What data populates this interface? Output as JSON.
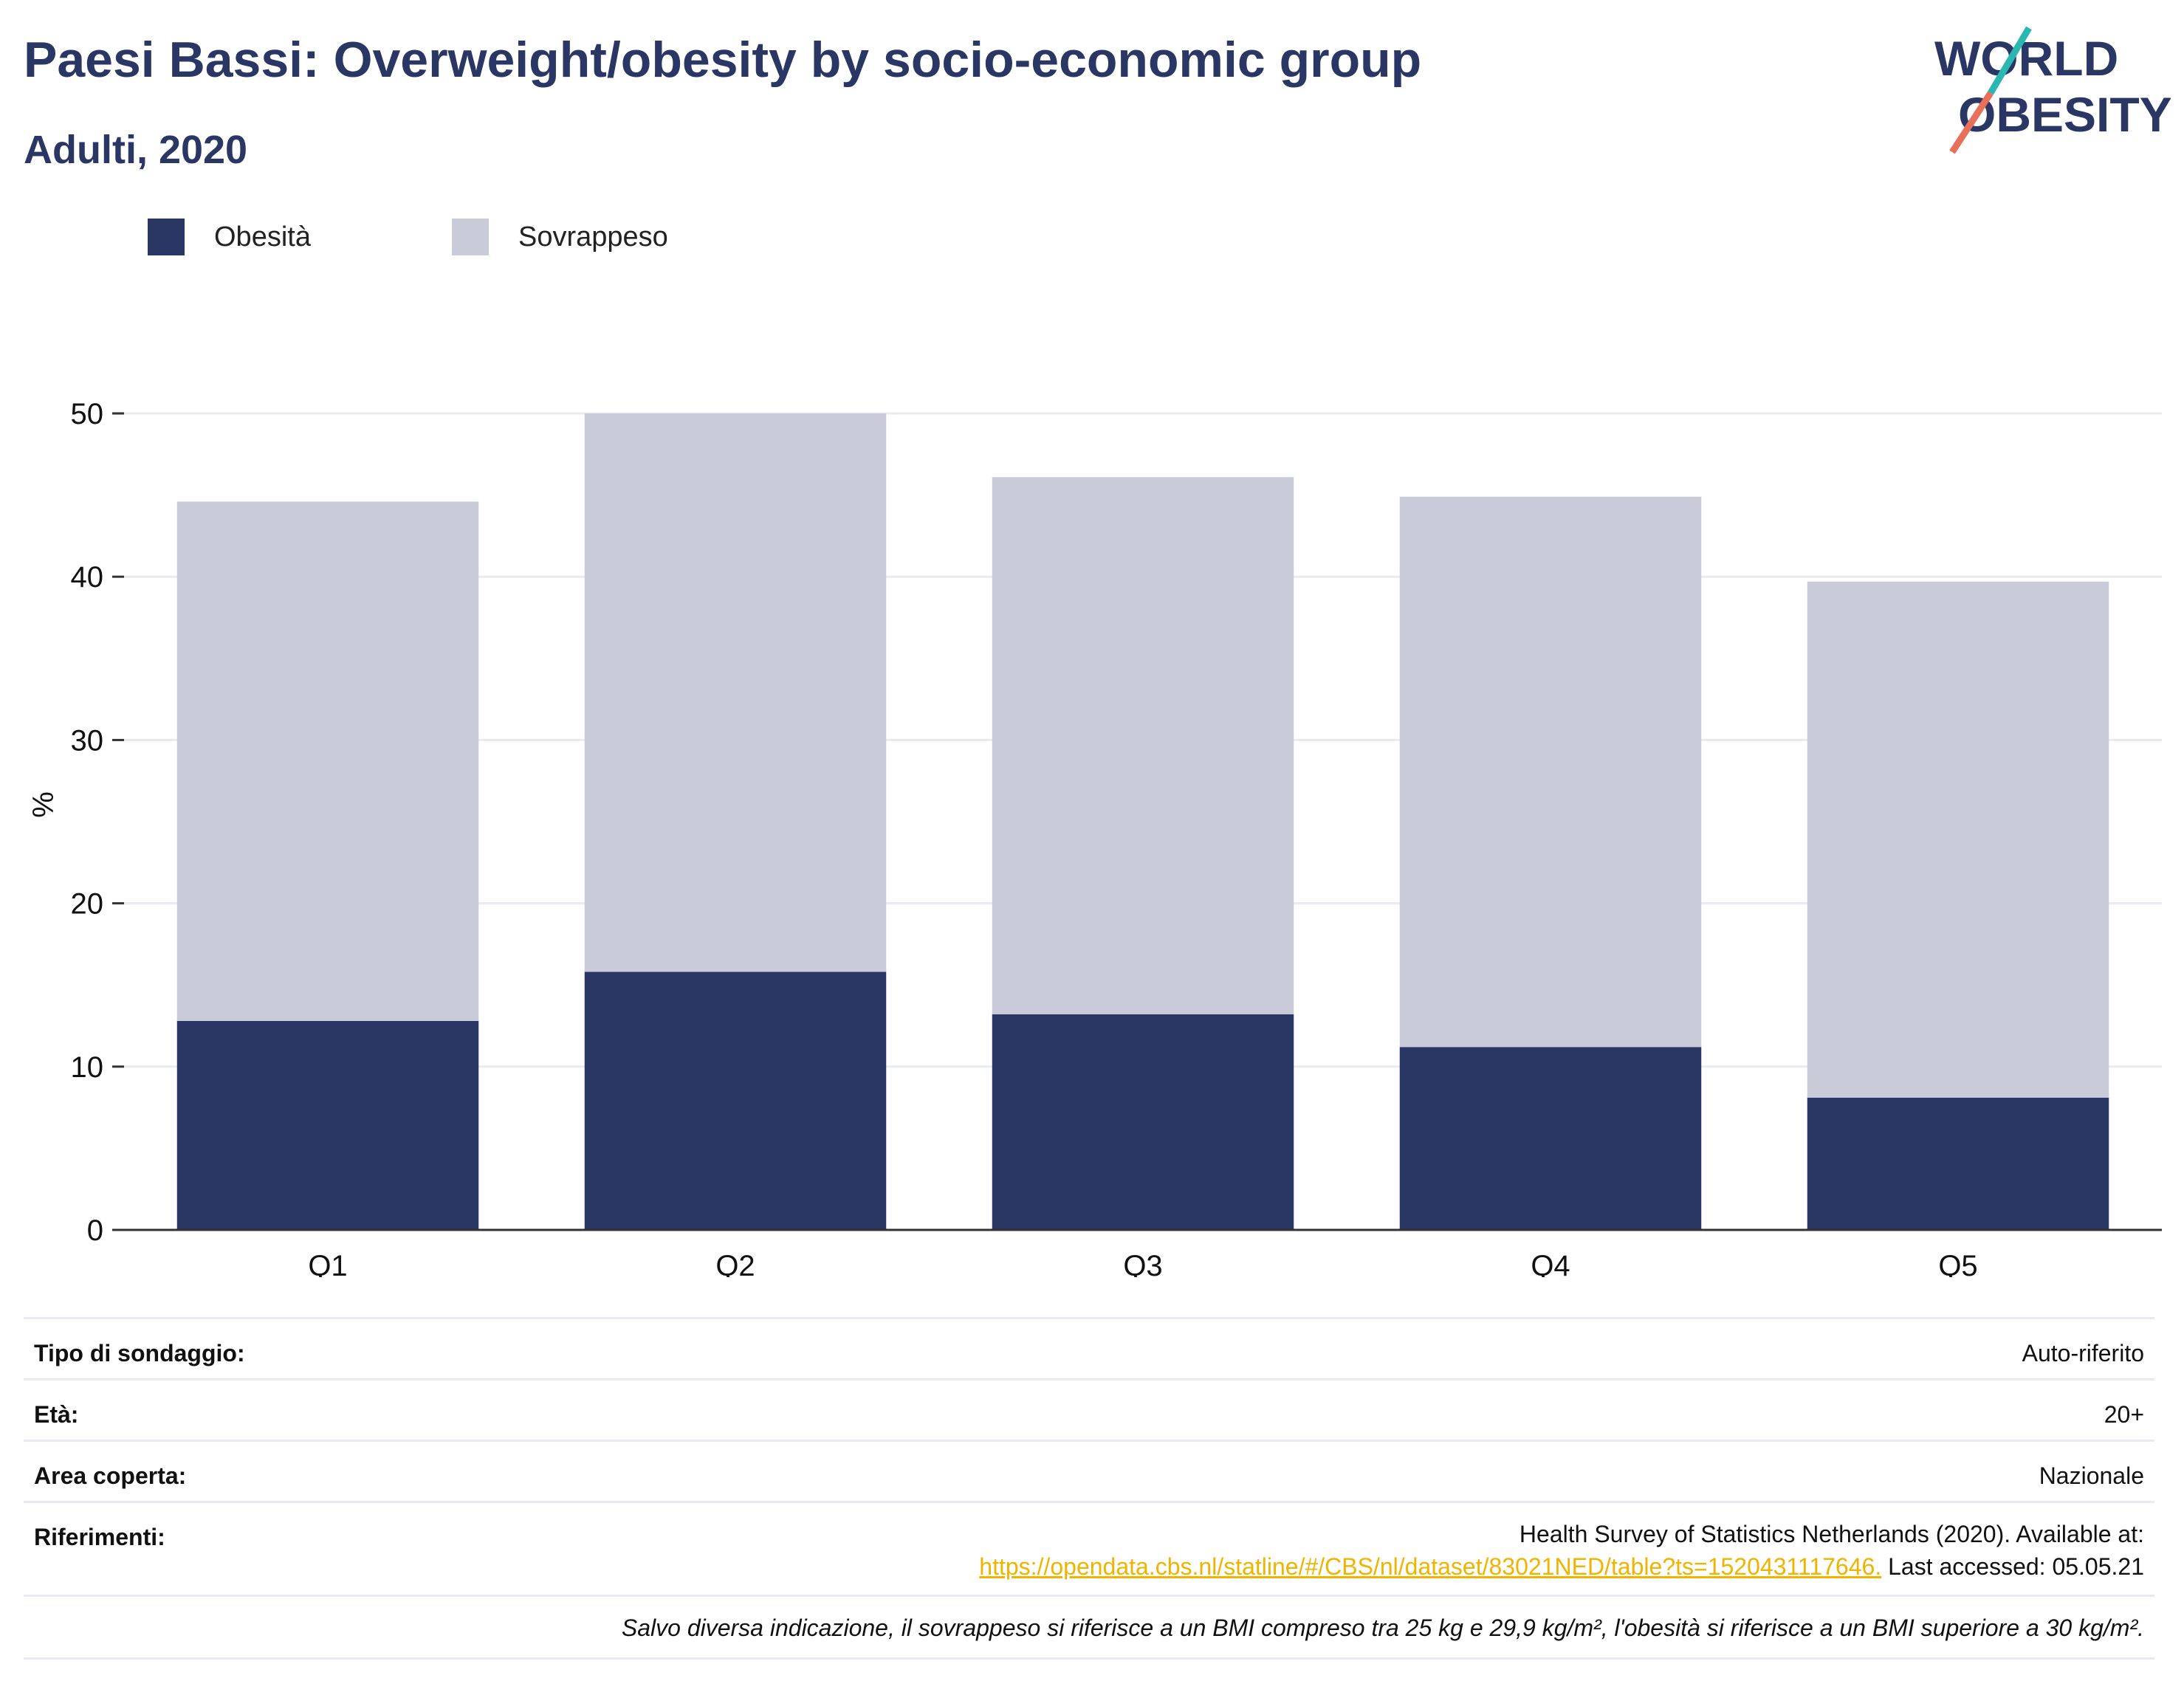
{
  "title": "Paesi Bassi: Overweight/obesity by socio-economic group",
  "subtitle": "Adulti, 2020",
  "logo": {
    "line1": "WORLD",
    "line2": "OBESITY",
    "accent_teal": "#2ab7b2",
    "accent_coral": "#e8705a",
    "color": "#2a3663"
  },
  "legend": [
    {
      "label": "Obesità",
      "color": "#2a3663"
    },
    {
      "label": "Sovrappeso",
      "color": "#c9ccd8"
    }
  ],
  "chart_data": {
    "type": "bar",
    "stacked": true,
    "categories": [
      "Q1",
      "Q2",
      "Q3",
      "Q4",
      "Q5"
    ],
    "series": [
      {
        "name": "Obesità",
        "color": "#2a3663",
        "values": [
          12.8,
          15.8,
          13.2,
          11.2,
          8.1
        ]
      },
      {
        "name": "Sovrappeso",
        "color": "#c9ccd8",
        "values": [
          31.8,
          34.2,
          32.9,
          33.7,
          31.6
        ]
      }
    ],
    "ylabel": "%",
    "ylim": [
      0,
      50
    ],
    "yticks": [
      0,
      10,
      20,
      30,
      40,
      50
    ],
    "grid": true,
    "legend_position": "top-left"
  },
  "info": {
    "survey_type": {
      "label": "Tipo di sondaggio:",
      "value": "Auto-riferito"
    },
    "age": {
      "label": "Età:",
      "value": "20+"
    },
    "area": {
      "label": "Area coperta:",
      "value": "Nazionale"
    },
    "references": {
      "label": "Riferimenti:",
      "text": "Health Survey of Statistics Netherlands (2020). Available at:",
      "link": "https://opendata.cbs.nl/statline/#/CBS/nl/dataset/83021NED/table?ts=1520431117646.",
      "accessed": "Last accessed: 05.05.21"
    },
    "footnote": "Salvo diversa indicazione, il sovrappeso si riferisce a un BMI compreso tra 25 kg e 29,9 kg/m², l'obesità si riferisce a un BMI superiore a 30 kg/m²."
  }
}
